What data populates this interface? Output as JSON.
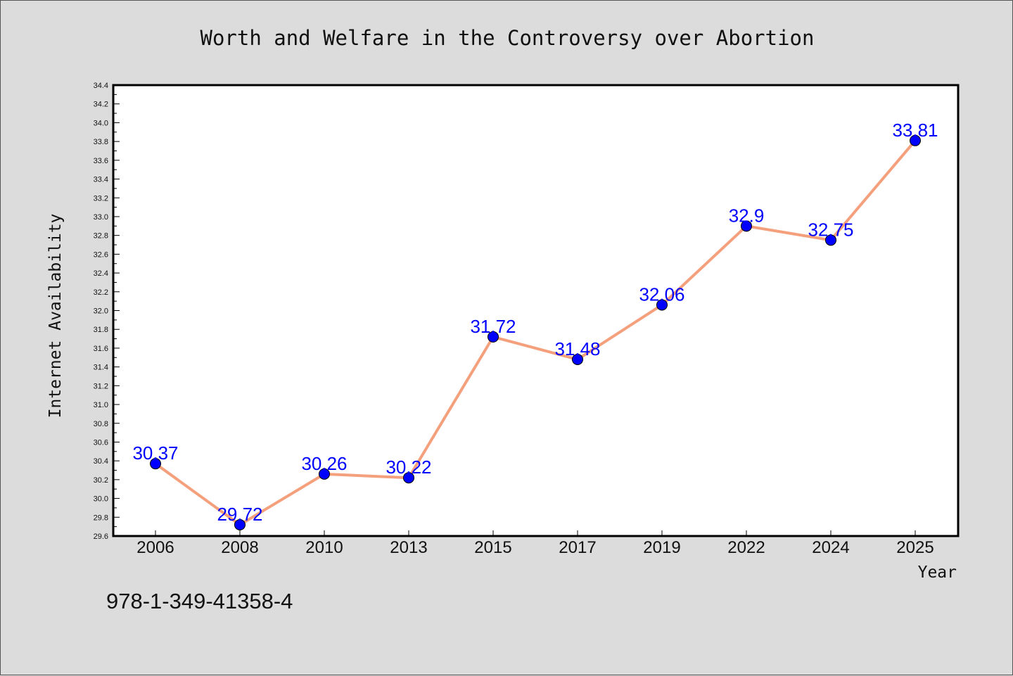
{
  "chart_data": {
    "type": "line",
    "title": "Worth and Welfare in the Controversy over Abortion",
    "xlabel": "Year",
    "ylabel": "Internet Availability",
    "categories": [
      "2006",
      "2008",
      "2010",
      "2013",
      "2015",
      "2017",
      "2019",
      "2022",
      "2024",
      "2025"
    ],
    "series": [
      {
        "values": [
          30.37,
          29.72,
          30.26,
          30.22,
          31.72,
          31.48,
          32.06,
          32.9,
          32.75,
          33.81
        ],
        "labels": [
          "30.37",
          "29.72",
          "30.26",
          "30.22",
          "31.72",
          "31.48",
          "32.06",
          "32.9",
          "32.75",
          "33.81"
        ],
        "line_color": "#f5a07c",
        "marker_color": "#0000ff"
      }
    ],
    "ylim": [
      29.6,
      34.4
    ],
    "ytick_step": 0.2,
    "ytick_labels": [
      "29.6",
      "29.8",
      "30.0",
      "30.2",
      "30.4",
      "30.6",
      "30.8",
      "31.0",
      "31.2",
      "31.4",
      "31.6",
      "31.8",
      "32.0",
      "32.2",
      "32.4",
      "32.6",
      "32.8",
      "33.0",
      "33.2",
      "33.4",
      "33.6",
      "33.8",
      "34.0",
      "34.2",
      "34.4"
    ],
    "grid": false,
    "legend": "none",
    "annotation": "978-1-349-41358-4"
  }
}
